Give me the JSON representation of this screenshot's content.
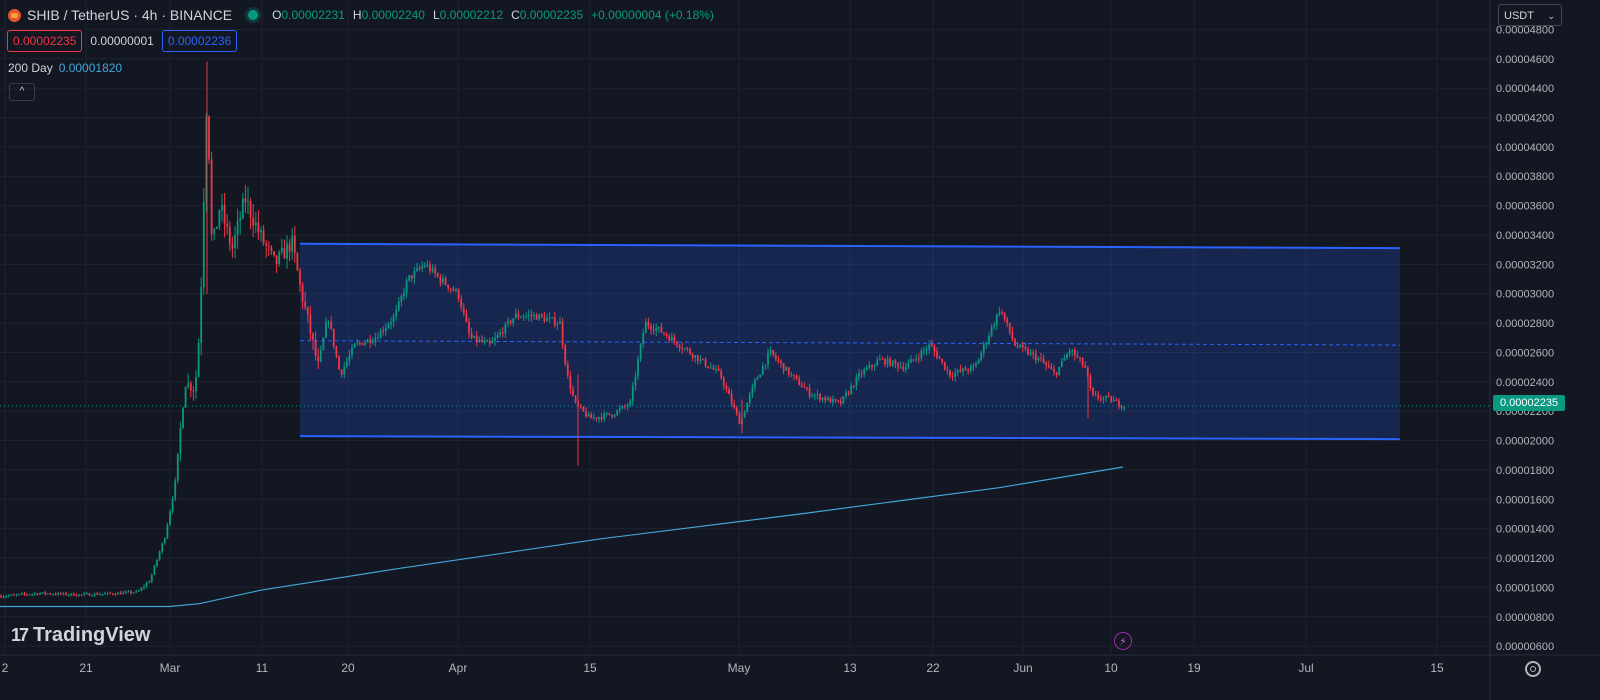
{
  "header": {
    "symbol_title": "SHIB / TetherUS · 4h · BINANCE",
    "ohlc": {
      "o_key": "O",
      "o": "0.00002231",
      "h_key": "H",
      "h": "0.00002240",
      "l_key": "L",
      "l": "0.00002212",
      "c_key": "C",
      "c": "0.00002235",
      "change": "+0.00000004 (+0.18%)"
    },
    "sell_price": "0.00002235",
    "spread": "0.00000001",
    "buy_price": "0.00002236",
    "ma_label": "200 Day",
    "ma_value": "0.00001820",
    "collapse_icon": "^"
  },
  "currency_select": {
    "value": "USDT",
    "chevron": "⌄"
  },
  "current_price_label": "0.00002235",
  "branding": {
    "mark": "17",
    "name": "TradingView"
  },
  "flash_icon": "⚡",
  "colors": {
    "background": "#131722",
    "up": "#089981",
    "down": "#f23645",
    "channel": "#2962ff",
    "ma": "#42a5d6",
    "grid": "#1f2330"
  },
  "chart_data": {
    "type": "candlestick",
    "symbol": "SHIB / TetherUS",
    "timeframe": "4h",
    "y_ticks": [
      "0.00004800",
      "0.00004600",
      "0.00004400",
      "0.00004200",
      "0.00004000",
      "0.00003800",
      "0.00003600",
      "0.00003400",
      "0.00003200",
      "0.00003000",
      "0.00002800",
      "0.00002600",
      "0.00002400",
      "0.00002200",
      "0.00002000",
      "0.00001800",
      "0.00001600",
      "0.00001400",
      "0.00001200",
      "0.00001000",
      "0.00000800",
      "0.00000600"
    ],
    "x_ticks": [
      "2",
      "21",
      "Mar",
      "11",
      "20",
      "Apr",
      "15",
      "May",
      "13",
      "22",
      "Jun",
      "10",
      "19",
      "Jul",
      "15"
    ],
    "ylim": [
      5.6e-06,
      4.83e-05
    ],
    "price_path": [
      [
        0,
        9.4e-06
      ],
      [
        40,
        9.6e-06
      ],
      [
        80,
        9.5e-06
      ],
      [
        120,
        9.6e-06
      ],
      [
        138,
        9.7e-06
      ],
      [
        150,
        1.05e-05
      ],
      [
        165,
        1.35e-05
      ],
      [
        175,
        1.7e-05
      ],
      [
        185,
        2.4e-05
      ],
      [
        195,
        2.35e-05
      ],
      [
        200,
        2.8e-05
      ],
      [
        207,
        4.4e-05
      ],
      [
        212,
        3.3e-05
      ],
      [
        220,
        3.6e-05
      ],
      [
        232,
        3.3e-05
      ],
      [
        245,
        3.65e-05
      ],
      [
        260,
        3.4e-05
      ],
      [
        275,
        3.2e-05
      ],
      [
        292,
        3.35e-05
      ],
      [
        300,
        3.05e-05
      ],
      [
        310,
        2.75e-05
      ],
      [
        318,
        2.5e-05
      ],
      [
        328,
        2.85e-05
      ],
      [
        340,
        2.45e-05
      ],
      [
        355,
        2.65e-05
      ],
      [
        375,
        2.7e-05
      ],
      [
        395,
        2.85e-05
      ],
      [
        408,
        3.1e-05
      ],
      [
        425,
        3.2e-05
      ],
      [
        440,
        3.1e-05
      ],
      [
        458,
        3e-05
      ],
      [
        470,
        2.7e-05
      ],
      [
        490,
        2.65e-05
      ],
      [
        515,
        2.85e-05
      ],
      [
        535,
        2.85e-05
      ],
      [
        560,
        2.8e-05
      ],
      [
        567,
        2.45e-05
      ],
      [
        575,
        2.25e-05
      ],
      [
        590,
        2.15e-05
      ],
      [
        612,
        2.18e-05
      ],
      [
        630,
        2.25e-05
      ],
      [
        645,
        2.8e-05
      ],
      [
        660,
        2.75e-05
      ],
      [
        680,
        2.65e-05
      ],
      [
        700,
        2.55e-05
      ],
      [
        720,
        2.45e-05
      ],
      [
        740,
        2.12e-05
      ],
      [
        755,
        2.4e-05
      ],
      [
        770,
        2.6e-05
      ],
      [
        790,
        2.45e-05
      ],
      [
        810,
        2.32e-05
      ],
      [
        840,
        2.25e-05
      ],
      [
        860,
        2.45e-05
      ],
      [
        880,
        2.55e-05
      ],
      [
        905,
        2.5e-05
      ],
      [
        930,
        2.65e-05
      ],
      [
        950,
        2.45e-05
      ],
      [
        975,
        2.5e-05
      ],
      [
        1000,
        2.9e-05
      ],
      [
        1015,
        2.65e-05
      ],
      [
        1040,
        2.55e-05
      ],
      [
        1055,
        2.45e-05
      ],
      [
        1070,
        2.62e-05
      ],
      [
        1085,
        2.5e-05
      ],
      [
        1092,
        2.3e-05
      ],
      [
        1110,
        2.28e-05
      ],
      [
        1125,
        2.23e-05
      ]
    ],
    "moving_average_200d": [
      [
        0,
        8.7e-06
      ],
      [
        170,
        8.7e-06
      ],
      [
        200,
        8.9e-06
      ],
      [
        260,
        9.8e-06
      ],
      [
        400,
        1.13e-05
      ],
      [
        600,
        1.33e-05
      ],
      [
        800,
        1.5e-05
      ],
      [
        1000,
        1.68e-05
      ],
      [
        1123,
        1.82e-05
      ]
    ],
    "channel": {
      "upper": [
        [
          300,
          3.34e-05
        ],
        [
          1400,
          3.31e-05
        ]
      ],
      "mid": [
        [
          300,
          2.68e-05
        ],
        [
          1400,
          2.65e-05
        ]
      ],
      "lower": [
        [
          300,
          2.03e-05
        ],
        [
          1400,
          2.01e-05
        ]
      ]
    },
    "current_price": 2.235e-05
  }
}
